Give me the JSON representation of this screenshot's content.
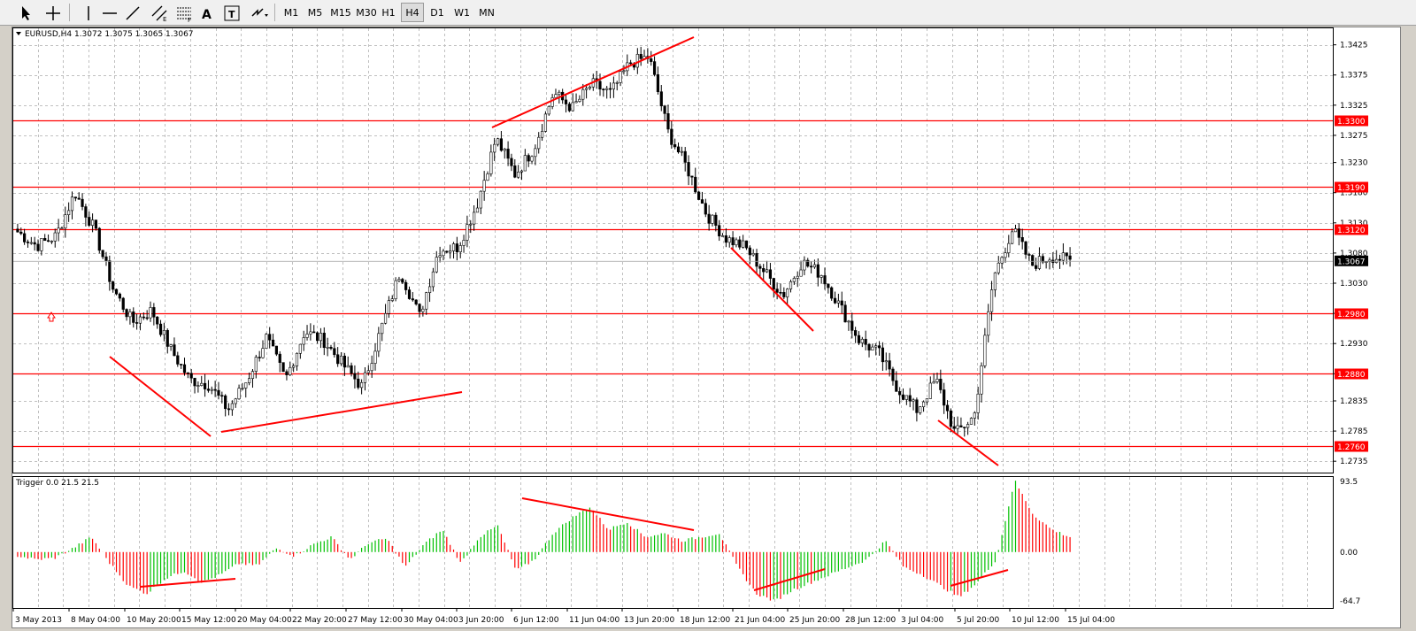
{
  "toolbar": {
    "timeframes": [
      {
        "label": "M1",
        "active": false
      },
      {
        "label": "M5",
        "active": false
      },
      {
        "label": "M15",
        "active": false
      },
      {
        "label": "M30",
        "active": false
      },
      {
        "label": "H1",
        "active": false
      },
      {
        "label": "H4",
        "active": true
      },
      {
        "label": "D1",
        "active": false
      },
      {
        "label": "W1",
        "active": false
      },
      {
        "label": "MN",
        "active": false
      }
    ],
    "icons": [
      "cursor-icon",
      "crosshair-icon",
      "vertical-line-icon",
      "horizontal-line-icon",
      "trendline-icon",
      "equidistant-channel-icon",
      "fibonacci-icon",
      "text-icon",
      "text-label-icon",
      "arrows-icon"
    ]
  },
  "chart": {
    "header": "EURUSD,H4  1.3072 1.3075 1.3065 1.3067",
    "price_ticks": [
      "1.3425",
      "1.3375",
      "1.3325",
      "1.3275",
      "1.3230",
      "1.3180",
      "1.3130",
      "1.3080",
      "1.3030",
      "1.2980",
      "1.2930",
      "1.2880",
      "1.2835",
      "1.2785",
      "1.2735"
    ],
    "hlines": [
      {
        "label": "1.3300",
        "price": 1.33
      },
      {
        "label": "1.3190",
        "price": 1.319
      },
      {
        "label": "1.3120",
        "price": 1.312
      },
      {
        "label": "1.2980",
        "price": 1.298
      },
      {
        "label": "1.2880",
        "price": 1.288
      },
      {
        "label": "1.2760",
        "price": 1.276
      }
    ],
    "current_price": {
      "label": "1.3067",
      "price": 1.3067
    },
    "time_labels": [
      "3 May 2013",
      "8 May 04:00",
      "10 May 20:00",
      "15 May 12:00",
      "20 May 04:00",
      "22 May 20:00",
      "27 May 12:00",
      "30 May 04:00",
      "3 Jun 20:00",
      "6 Jun 12:00",
      "11 Jun 04:00",
      "13 Jun 20:00",
      "18 Jun 12:00",
      "21 Jun 04:00",
      "25 Jun 20:00",
      "28 Jun 12:00",
      "3 Jul 04:00",
      "5 Jul 20:00",
      "10 Jul 12:00",
      "15 Jul 04:00"
    ]
  },
  "indicator": {
    "header": "Trigger 0.0 21.5 21.5",
    "ticks": [
      "93.5",
      "0.00",
      "-64.7"
    ]
  },
  "colors": {
    "bull": "#00c000",
    "bear": "#ff0000",
    "line": "#ff0000",
    "grid": "#c0c0c0",
    "axis_label_bg": "#ff0000",
    "current_bg": "#000000"
  },
  "chart_data": [
    {
      "type": "candlestick",
      "title": "EURUSD,H4  1.3072 1.3075 1.3065 1.3067",
      "x_labels": [
        "3 May 2013",
        "8 May 04:00",
        "10 May 20:00",
        "15 May 12:00",
        "20 May 04:00",
        "22 May 20:00",
        "27 May 12:00",
        "30 May 04:00",
        "3 Jun 20:00",
        "6 Jun 12:00",
        "11 Jun 04:00",
        "13 Jun 20:00",
        "18 Jun 12:00",
        "21 Jun 04:00",
        "25 Jun 20:00",
        "28 Jun 12:00",
        "3 Jul 04:00",
        "5 Jul 20:00",
        "10 Jul 12:00",
        "15 Jul 04:00"
      ],
      "ylim": [
        1.2725,
        1.3445
      ],
      "close_path": [
        1.3115,
        1.3092,
        1.3108,
        1.318,
        1.312,
        1.302,
        1.2965,
        1.2985,
        1.292,
        1.287,
        1.2862,
        1.282,
        1.287,
        1.294,
        1.287,
        1.295,
        1.2935,
        1.2895,
        1.2858,
        1.2955,
        1.305,
        1.2975,
        1.3085,
        1.309,
        1.316,
        1.327,
        1.321,
        1.3255,
        1.3345,
        1.332,
        1.336,
        1.3345,
        1.3395,
        1.3405,
        1.328,
        1.322,
        1.3145,
        1.3105,
        1.309,
        1.305,
        1.301,
        1.3065,
        1.3045,
        1.299,
        1.2935,
        1.2915,
        1.2855,
        1.282,
        1.287,
        1.278,
        1.281,
        1.304,
        1.312,
        1.306,
        1.3075,
        1.3067
      ],
      "horizontal_levels": [
        1.33,
        1.319,
        1.312,
        1.298,
        1.288,
        1.276
      ],
      "last_price": 1.3067
    },
    {
      "type": "bar",
      "title": "Trigger 0.0 21.5 21.5",
      "ylim": [
        -64.7,
        93.5
      ],
      "value_path": [
        -5,
        -10,
        -8,
        5,
        20,
        -15,
        -45,
        -55,
        -35,
        -25,
        -40,
        -30,
        -15,
        -18,
        5,
        -5,
        10,
        20,
        -10,
        12,
        18,
        -20,
        10,
        30,
        -15,
        20,
        35,
        -25,
        -10,
        25,
        45,
        60,
        30,
        40,
        20,
        25,
        15,
        20,
        25,
        -20,
        -55,
        -65,
        -50,
        -40,
        -30,
        -20,
        -10,
        15,
        -20,
        -30,
        -45,
        -60,
        -40,
        -10,
        95,
        50,
        30,
        20
      ]
    }
  ]
}
